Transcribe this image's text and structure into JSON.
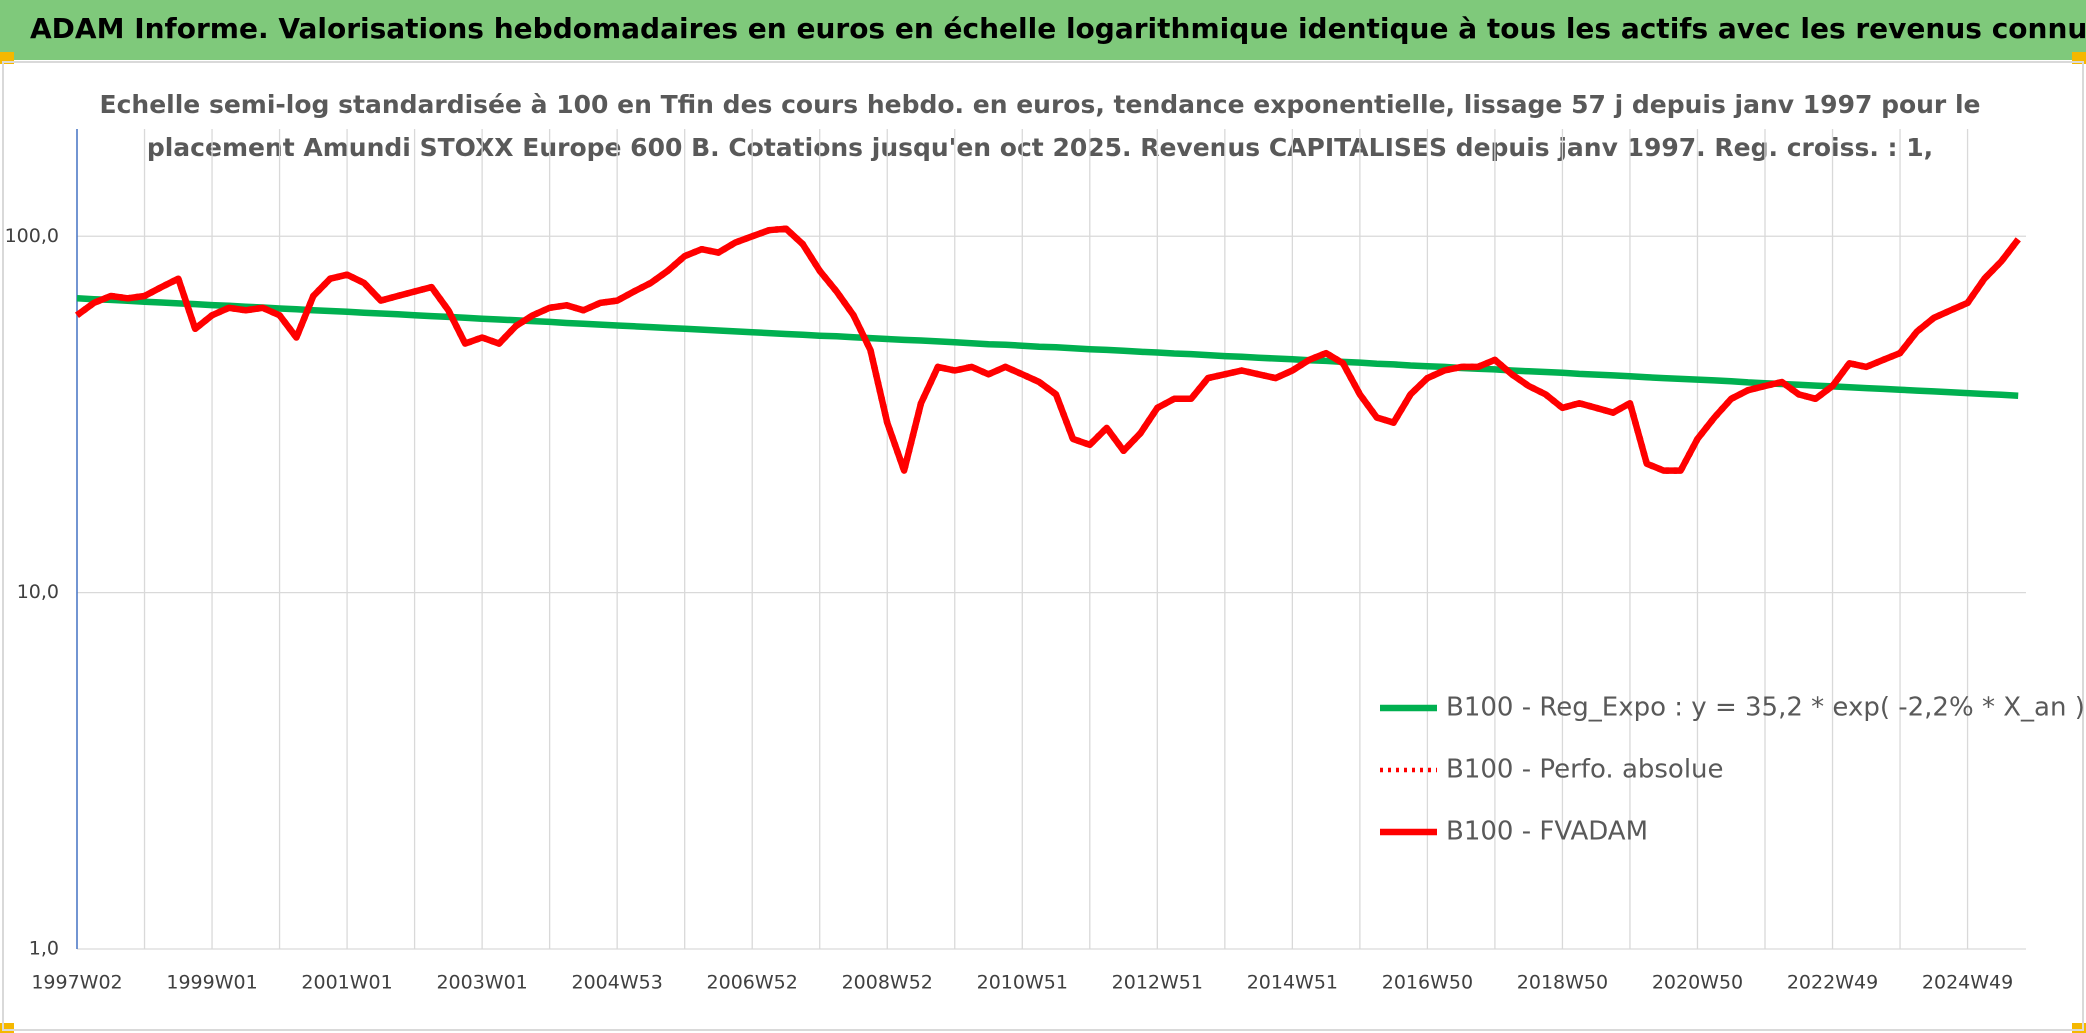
{
  "chart_data": {
    "type": "line",
    "title": "ADAM Informe. Valorisations hebdomadaires en euros en échelle logarithmique identique à tous les actifs avec les revenus connus capitalisés",
    "subtitle": [
      "Echelle semi-log standardisée à 100 en Tfin des cours hebdo. en euros, tendance exponentielle, lissage 57 j depuis janv 1997 pour le",
      "placement Amundi STOXX Europe 600 B. Cotations jusqu'en oct 2025. Revenus CAPITALISES depuis janv 1997. Reg. croiss. : 1,"
    ],
    "log_y": true,
    "grid": true,
    "legend": "center right",
    "ylim": [
      1,
      200
    ],
    "yticks": [
      {
        "value": 1,
        "label": "1,0"
      },
      {
        "value": 10,
        "label": "10,0"
      },
      {
        "value": 100,
        "label": "100,0"
      }
    ],
    "categories": [
      "1997W02",
      null,
      null,
      null,
      null,
      null,
      null,
      null,
      "1999W01",
      null,
      null,
      null,
      null,
      null,
      null,
      null,
      "2001W01",
      null,
      null,
      null,
      null,
      null,
      null,
      null,
      "2003W01",
      null,
      null,
      null,
      null,
      null,
      null,
      null,
      "2004W53",
      null,
      null,
      null,
      null,
      null,
      null,
      null,
      "2006W52",
      null,
      null,
      null,
      null,
      null,
      null,
      null,
      "2008W52",
      null,
      null,
      null,
      null,
      null,
      null,
      null,
      "2010W51",
      null,
      null,
      null,
      null,
      null,
      null,
      null,
      "2012W51",
      null,
      null,
      null,
      null,
      null,
      null,
      null,
      "2014W51",
      null,
      null,
      null,
      null,
      null,
      null,
      null,
      "2016W50",
      null,
      null,
      null,
      null,
      null,
      null,
      null,
      "2018W50",
      null,
      null,
      null,
      null,
      null,
      null,
      null,
      "2020W50",
      null,
      null,
      null,
      null,
      null,
      null,
      null,
      "2022W49",
      null,
      null,
      null,
      null,
      null,
      null,
      null,
      "2024W49",
      null,
      null,
      null
    ],
    "series": [
      {
        "name": "B100 - Reg_Expo : y = 35,2 * exp( -2,2% *  X_an )",
        "color": "#00b050",
        "style": "solid",
        "values": [
          67.0,
          66.6,
          66.3,
          65.9,
          65.5,
          65.2,
          64.8,
          64.5,
          64.1,
          63.8,
          63.4,
          63.1,
          62.7,
          62.4,
          62.0,
          61.7,
          61.4,
          61.0,
          60.7,
          60.4,
          60.0,
          59.7,
          59.4,
          59.1,
          58.7,
          58.4,
          58.1,
          57.8,
          57.5,
          57.1,
          56.8,
          56.5,
          56.2,
          55.9,
          55.6,
          55.3,
          55.0,
          54.7,
          54.4,
          54.1,
          53.8,
          53.5,
          53.2,
          52.9,
          52.6,
          52.4,
          52.1,
          51.8,
          51.5,
          51.2,
          51.0,
          50.7,
          50.4,
          50.1,
          49.8,
          49.6,
          49.3,
          49.0,
          48.8,
          48.5,
          48.2,
          48.0,
          47.7,
          47.4,
          47.2,
          46.9,
          46.7,
          46.4,
          46.1,
          45.9,
          45.6,
          45.4,
          45.2,
          44.9,
          44.7,
          44.4,
          44.2,
          43.9,
          43.7,
          43.4,
          43.2,
          43.0,
          42.7,
          42.5,
          42.3,
          42.0,
          41.8,
          41.6,
          41.4,
          41.1,
          40.9,
          40.7,
          40.5,
          40.2,
          40.0,
          39.8,
          39.6,
          39.4,
          39.2,
          38.9,
          38.7,
          38.5,
          38.3,
          38.1,
          37.9,
          37.7,
          37.5,
          37.3,
          37.1,
          36.9,
          36.7,
          36.5,
          36.3,
          36.1,
          35.9,
          35.7
        ]
      },
      {
        "name": "B100 - Perfo. absolue",
        "color": "#ff0000",
        "style": "dotted",
        "values": [
          60,
          65,
          68,
          67,
          68,
          72,
          76,
          55,
          60,
          63,
          62,
          63,
          60,
          52,
          68,
          76,
          78,
          74,
          66,
          68,
          70,
          72,
          62,
          50,
          52,
          50,
          56,
          60,
          63,
          64,
          62,
          65,
          66,
          70,
          74,
          80,
          88,
          92,
          90,
          96,
          100,
          104,
          105,
          95,
          80,
          70,
          60,
          48,
          30,
          22,
          34,
          43,
          42,
          43,
          41,
          43,
          41,
          39,
          36,
          27,
          26,
          29,
          25,
          28,
          33,
          35,
          35,
          40,
          41,
          42,
          41,
          40,
          42,
          45,
          47,
          44,
          36,
          31,
          30,
          36,
          40,
          42,
          43,
          43,
          45,
          41,
          38,
          36,
          33,
          34,
          33,
          32,
          34,
          23,
          22,
          22,
          27,
          31,
          35,
          37,
          38,
          39,
          36,
          35,
          38,
          44,
          43,
          45,
          47,
          54,
          59,
          62,
          65,
          76,
          85,
          98
        ]
      },
      {
        "name": "B100 - FVADAM",
        "color": "#ff0000",
        "style": "solid",
        "values": [
          60,
          65,
          68,
          67,
          68,
          72,
          76,
          55,
          60,
          63,
          62,
          63,
          60,
          52,
          68,
          76,
          78,
          74,
          66,
          68,
          70,
          72,
          62,
          50,
          52,
          50,
          56,
          60,
          63,
          64,
          62,
          65,
          66,
          70,
          74,
          80,
          88,
          92,
          90,
          96,
          100,
          104,
          105,
          95,
          80,
          70,
          60,
          48,
          30,
          22,
          34,
          43,
          42,
          43,
          41,
          43,
          41,
          39,
          36,
          27,
          26,
          29,
          25,
          28,
          33,
          35,
          35,
          40,
          41,
          42,
          41,
          40,
          42,
          45,
          47,
          44,
          36,
          31,
          30,
          36,
          40,
          42,
          43,
          43,
          45,
          41,
          38,
          36,
          33,
          34,
          33,
          32,
          34,
          23,
          22,
          22,
          27,
          31,
          35,
          37,
          38,
          39,
          36,
          35,
          38,
          44,
          43,
          45,
          47,
          54,
          59,
          62,
          65,
          76,
          85,
          98
        ]
      }
    ]
  }
}
